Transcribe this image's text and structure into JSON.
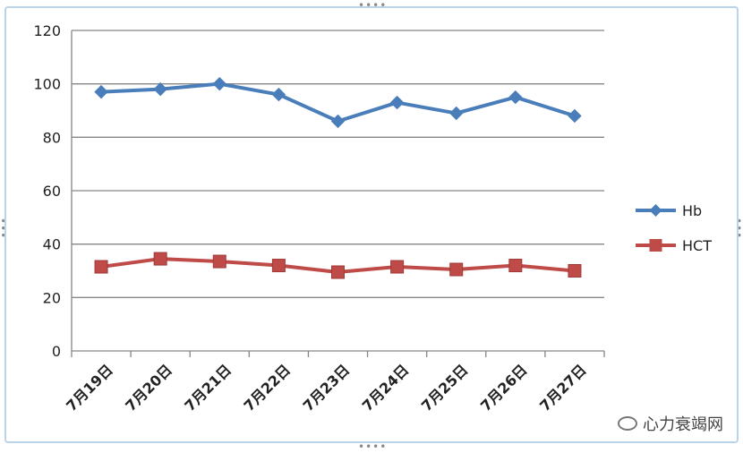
{
  "chart_data": {
    "type": "line",
    "categories": [
      "7月19日",
      "7月20日",
      "7月21日",
      "7月22日",
      "7月23日",
      "7月24日",
      "7月25日",
      "7月26日",
      "7月27日"
    ],
    "series": [
      {
        "name": "Hb",
        "values": [
          97,
          98,
          100,
          96,
          86,
          93,
          89,
          95,
          88
        ],
        "color": "#4a7ebb",
        "marker": "diamond"
      },
      {
        "name": "HCT",
        "values": [
          31.5,
          34.5,
          33.5,
          32,
          29.5,
          31.5,
          30.5,
          32,
          30
        ],
        "color": "#be4b48",
        "marker": "square"
      }
    ],
    "ylim": [
      0,
      120
    ],
    "yticks": [
      "0",
      "20",
      "40",
      "60",
      "80",
      "100",
      "120"
    ],
    "grid": true,
    "legend": "right"
  },
  "watermark": {
    "text": "心力衰竭网"
  }
}
